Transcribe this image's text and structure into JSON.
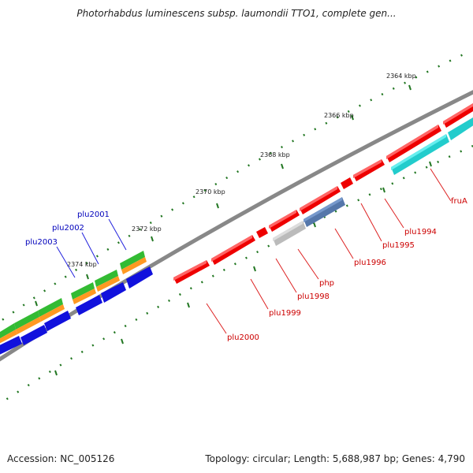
{
  "title": "Photorhabdus luminescens subsp. laumondii TTO1, complete gen...",
  "footer": {
    "accession": "Accession: NC_005126",
    "stats": "Topology: circular; Length: 5,688,987 bp; Genes: 4,790"
  },
  "colors": {
    "backbone": "#808080",
    "red_feature": "#ee0000",
    "cyan_feature": "#22cccc",
    "gray_feature": "#bbbbbb",
    "steel_feature": "#5577aa",
    "green_feature": "#33bb33",
    "orange_feature": "#ff9922",
    "blue_feature": "#1111dd",
    "tick": "#227722",
    "label_red": "#cc0000",
    "label_blue": "#0000bb"
  },
  "scale_labels": [
    "2364 kbp",
    "2366 kbp",
    "2368 kbp",
    "2370 kbp",
    "2372 kbp",
    "2374 kbp"
  ],
  "gene_labels_right": [
    "fruA",
    "plu1994",
    "plu1995",
    "plu1996",
    "php",
    "plu1998",
    "plu1999",
    "plu2000"
  ],
  "gene_labels_left": [
    "plu2001",
    "plu2002",
    "plu2003"
  ]
}
